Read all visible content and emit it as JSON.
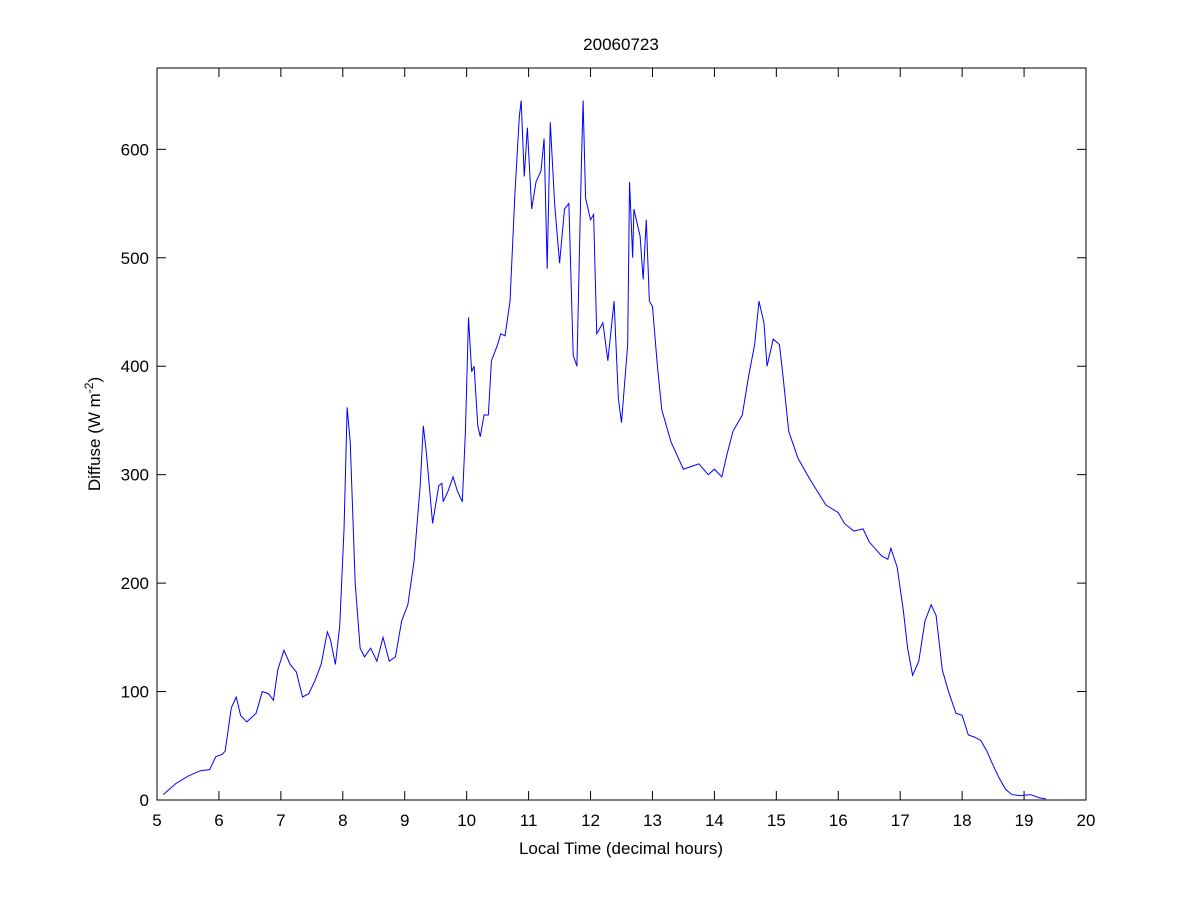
{
  "chart_data": {
    "type": "line",
    "title": "20060723",
    "xlabel": "Local Time (decimal hours)",
    "ylabel": [
      "Diffuse (W m",
      "-2",
      ")"
    ],
    "xlim": [
      5,
      20
    ],
    "xticks": [
      5,
      6,
      7,
      8,
      9,
      10,
      11,
      12,
      13,
      14,
      15,
      16,
      17,
      18,
      19,
      20
    ],
    "ylim": [
      0,
      675
    ],
    "yticks": [
      0,
      100,
      200,
      300,
      400,
      500,
      600
    ],
    "series": [
      {
        "color": "#0000ff",
        "x": [
          5.1,
          5.3,
          5.5,
          5.7,
          5.85,
          5.95,
          6.05,
          6.1,
          6.2,
          6.28,
          6.35,
          6.45,
          6.6,
          6.7,
          6.8,
          6.88,
          6.95,
          7.05,
          7.15,
          7.25,
          7.35,
          7.45,
          7.55,
          7.65,
          7.75,
          7.8,
          7.88,
          7.95,
          8.02,
          8.07,
          8.12,
          8.2,
          8.28,
          8.35,
          8.45,
          8.55,
          8.65,
          8.75,
          8.85,
          8.95,
          9.05,
          9.15,
          9.25,
          9.3,
          9.35,
          9.45,
          9.55,
          9.6,
          9.62,
          9.7,
          9.78,
          9.85,
          9.93,
          9.98,
          10.03,
          10.08,
          10.12,
          10.18,
          10.22,
          10.28,
          10.35,
          10.4,
          10.5,
          10.55,
          10.62,
          10.7,
          10.78,
          10.85,
          10.88,
          10.93,
          10.98,
          11.05,
          11.12,
          11.2,
          11.25,
          11.3,
          11.35,
          11.42,
          11.5,
          11.58,
          11.65,
          11.72,
          11.78,
          11.85,
          11.88,
          11.92,
          12.0,
          12.05,
          12.1,
          12.2,
          12.28,
          12.38,
          12.45,
          12.5,
          12.6,
          12.63,
          12.68,
          12.7,
          12.8,
          12.85,
          12.9,
          12.95,
          13.0,
          13.08,
          13.15,
          13.3,
          13.5,
          13.65,
          13.75,
          13.9,
          14.0,
          14.12,
          14.2,
          14.3,
          14.45,
          14.55,
          14.65,
          14.72,
          14.8,
          14.85,
          14.95,
          15.05,
          15.1,
          15.2,
          15.35,
          15.55,
          15.8,
          16.0,
          16.1,
          16.25,
          16.4,
          16.5,
          16.7,
          16.8,
          16.85,
          16.95,
          17.05,
          17.12,
          17.2,
          17.3,
          17.4,
          17.5,
          17.58,
          17.68,
          17.78,
          17.9,
          18.0,
          18.1,
          18.2,
          18.3,
          18.4,
          18.5,
          18.6,
          18.7,
          18.8,
          18.95,
          19.1,
          19.25,
          19.35
        ],
        "values": [
          5,
          15,
          22,
          27,
          28,
          40,
          42,
          45,
          85,
          95,
          78,
          72,
          80,
          100,
          98,
          92,
          120,
          138,
          125,
          118,
          95,
          98,
          110,
          125,
          155,
          148,
          125,
          160,
          250,
          362,
          330,
          200,
          140,
          132,
          140,
          128,
          150,
          128,
          132,
          165,
          180,
          220,
          290,
          345,
          320,
          255,
          290,
          292,
          275,
          285,
          298,
          285,
          275,
          340,
          445,
          395,
          400,
          345,
          335,
          355,
          355,
          405,
          420,
          430,
          428,
          460,
          560,
          630,
          645,
          575,
          620,
          545,
          570,
          580,
          610,
          490,
          625,
          550,
          495,
          545,
          550,
          410,
          400,
          580,
          645,
          555,
          535,
          540,
          430,
          440,
          405,
          460,
          370,
          348,
          420,
          570,
          500,
          545,
          520,
          480,
          535,
          460,
          455,
          400,
          360,
          330,
          305,
          308,
          310,
          300,
          305,
          298,
          318,
          340,
          355,
          390,
          420,
          460,
          440,
          400,
          425,
          420,
          395,
          340,
          315,
          295,
          272,
          265,
          255,
          248,
          250,
          238,
          225,
          222,
          232,
          215,
          175,
          140,
          115,
          128,
          165,
          180,
          170,
          120,
          100,
          80,
          78,
          60,
          58,
          55,
          45,
          32,
          20,
          10,
          5,
          4,
          5,
          2,
          1
        ]
      }
    ]
  }
}
